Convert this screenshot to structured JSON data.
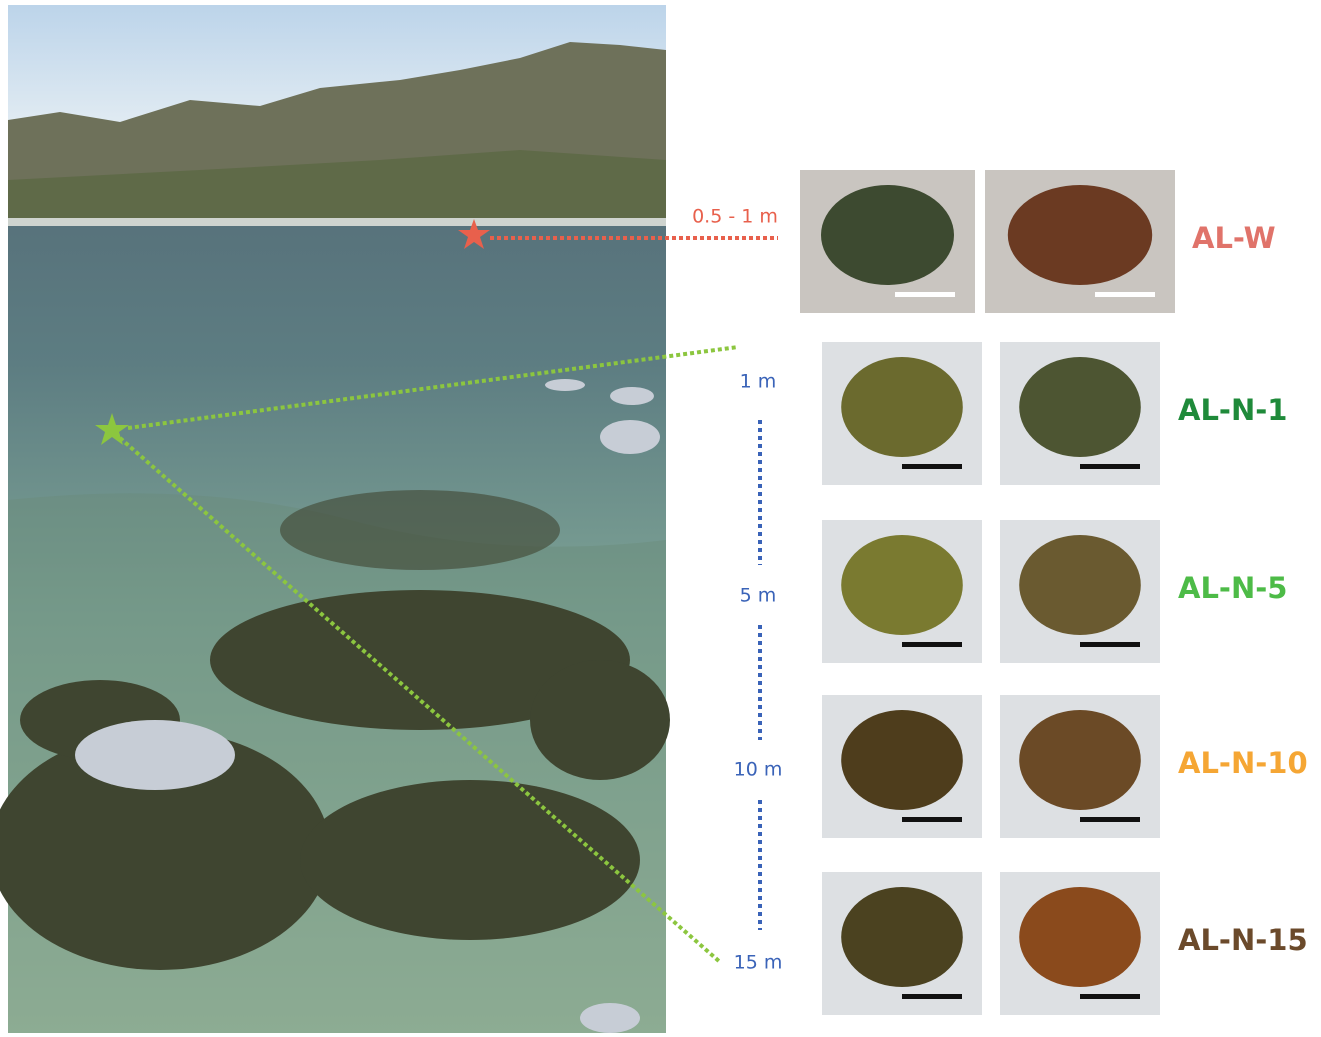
{
  "surface_depth": {
    "label": "0.5 - 1 m",
    "color": "#e8604c"
  },
  "samples": [
    {
      "name": "AL-W",
      "color": "#e0736a"
    },
    {
      "name": "AL-N-1",
      "color": "#1f8a3a"
    },
    {
      "name": "AL-N-5",
      "color": "#4dbb47"
    },
    {
      "name": "AL-N-10",
      "color": "#f5a634"
    },
    {
      "name": "AL-N-15",
      "color": "#6b4a2b"
    }
  ],
  "depths": [
    "1 m",
    "5 m",
    "10 m",
    "15 m"
  ],
  "depth_color": "#3a63b8"
}
